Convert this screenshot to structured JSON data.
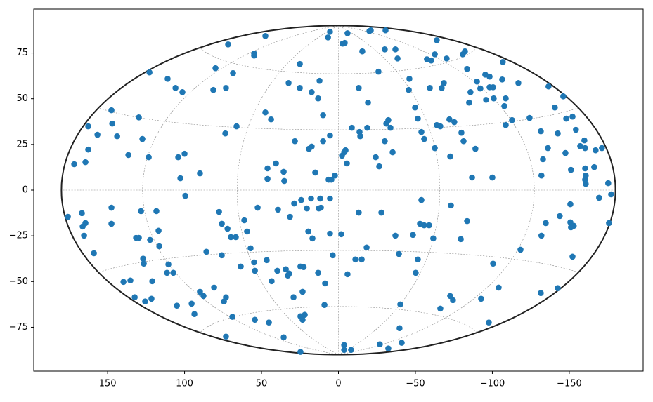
{
  "chart_data": {
    "type": "scatter",
    "projection": "hammer",
    "grid": true,
    "color": "#1f77b4",
    "xlim": [
      198,
      -198
    ],
    "ylim": [
      -99,
      99
    ],
    "xticks": [
      150,
      100,
      50,
      0,
      {
        "value": -50,
        "label": "−50"
      },
      {
        "value": -100,
        "label": "−100"
      },
      {
        "value": -150,
        "label": "−150"
      }
    ],
    "yticks": [
      {
        "value": -75,
        "label": "−75"
      },
      {
        "value": -50,
        "label": "−50"
      },
      {
        "value": -25,
        "label": "−25"
      },
      0,
      25,
      50,
      75
    ],
    "x": [
      5.5,
      6.8,
      -2.7,
      -4.1,
      -5.9,
      -21,
      -20.1,
      -30.6,
      71.7,
      47.5,
      54.8,
      54.8,
      25.1,
      -15.5,
      -30.1,
      -37,
      -38.4,
      -26,
      -63.9,
      -57.5,
      -60.3,
      -62.6,
      -70.3,
      -80.8,
      -82.2,
      79.9,
      68.5,
      122.8,
      111,
      105.9,
      101.4,
      81.3,
      73.1,
      32.4,
      25.1,
      17.4,
      12.3,
      13.2,
      -13.2,
      -19.2,
      -46.1,
      -45.7,
      -59.4,
      -67.1,
      -68.5,
      -83.6,
      -90,
      -92.2,
      -85.8,
      -84.9,
      -95.4,
      -98.2,
      -98.2,
      -100.5,
      -95.9,
      -100.9,
      -106.8,
      -106.4,
      -108.7,
      -107.8,
      -116.9,
      -112.8,
      -108.7,
      -136.5,
      -140.6,
      -146.1,
      -148,
      -152.1,
      -124.2,
      147.5,
      147,
      162.6,
      156.6,
      143.8,
      129.7,
      127.4,
      136.5,
      123.3,
      162.6,
      164.4,
      171.7,
      104.1,
      100,
      102.7,
      90,
      99.5,
      66.2,
      73.5,
      47.5,
      43.8,
      28.3,
      19.2,
      17.4,
      10,
      5.5,
      10,
      46.1,
      40.6,
      46.1,
      35.6,
      35.2,
      15.1,
      6.4,
      4.6,
      2.3,
      -2.3,
      -3.7,
      -4.6,
      -5.5,
      -8.7,
      -13.7,
      -14.2,
      -18.7,
      -24.2,
      -26.5,
      -31.1,
      -32.4,
      -33.8,
      -30.1,
      -35.2,
      -49.8,
      -51.6,
      -53.9,
      -55.7,
      -62.6,
      -63.9,
      -66.2,
      -72.1,
      -75.3,
      -72.6,
      -79.9,
      -81.3,
      -89,
      -86.8,
      -100,
      -131.5,
      -136.1,
      -132.9,
      -131.9,
      -142.5,
      -147.5,
      -151.1,
      -154.3,
      -157.1,
      -159.8,
      -160.3,
      -160.3,
      -160.7,
      -160.3,
      -160.7,
      -166.2,
      -167.1,
      -171.2,
      -169.4,
      -175.3,
      -177.2,
      -175.8,
      175.8,
      166.7,
      166.2,
      164.4,
      165.3,
      158.9,
      147.5,
      147.5,
      139.7,
      135.2,
      132.4,
      131.5,
      129.7,
      128.3,
      126.9,
      126.5,
      125.6,
      121.5,
      121,
      122.4,
      118.3,
      116.9,
      116.4,
      110.5,
      111.4,
      107.3,
      105,
      95.4,
      93.6,
      90,
      87.7,
      85.8,
      80.8,
      77.6,
      75.8,
      73.1,
      74.4,
      72.1,
      69.9,
      75.8,
      73.1,
      68.9,
      66.7,
      63.5,
      61.2,
      59.4,
      57.1,
      54.8,
      54.3,
      54.3,
      52.5,
      46.6,
      45.2,
      43.4,
      39.7,
      39.3,
      34.2,
      32.9,
      32,
      31.5,
      35.6,
      29.2,
      28.8,
      24.7,
      22.6,
      23.3,
      24.7,
      23.3,
      21.9,
      24.2,
      24.7,
      20.5,
      19.6,
      16.9,
      17.8,
      12.8,
      11.4,
      11.9,
      13.2,
      8.7,
      9.1,
      5.5,
      5.5,
      3.7,
      -1.8,
      -3.7,
      -3.7,
      -5.9,
      -8.2,
      -11,
      -13.2,
      -15.1,
      -18.3,
      -26.9,
      -27.9,
      -32.4,
      -37,
      -39.3,
      -40.2,
      -39.7,
      -41.1,
      -48.4,
      -51.6,
      -50.2,
      -53,
      -53.9,
      -55.7,
      -58.9,
      -61.6,
      -66.2,
      -72.6,
      -74.4,
      -73.1,
      -79.5,
      -83.6,
      -92.7,
      -97.7,
      -100.5,
      -104.1,
      -118.3,
      -131.9,
      -131.5,
      -134.7,
      -142.5,
      -143.8,
      -150.7,
      -150.7,
      -151.1,
      -152.9,
      -152.1
    ],
    "values": [
      86.6,
      83.5,
      80.1,
      80.5,
      85.8,
      87.4,
      87,
      87.4,
      79.7,
      84.3,
      74.7,
      73.6,
      69,
      75.9,
      77,
      77,
      72,
      64.8,
      82,
      71.6,
      70.9,
      74.3,
      72,
      74.3,
      75.9,
      66.7,
      64,
      64.4,
      60.9,
      55.9,
      53.6,
      54.8,
      55.9,
      58.6,
      55.9,
      53.6,
      59.8,
      50.2,
      55.9,
      47.9,
      60.9,
      54.8,
      55.9,
      55.9,
      58.6,
      66.3,
      59.4,
      55.6,
      53.6,
      47.9,
      63.2,
      62.1,
      56.3,
      56.3,
      49.4,
      50.2,
      70.1,
      60.5,
      50.2,
      46,
      58.6,
      38.3,
      35.6,
      56.7,
      45.2,
      51.3,
      39.1,
      40.2,
      39.5,
      43.7,
      36.4,
      34.9,
      30.3,
      29.5,
      39.8,
      28,
      19.2,
      18,
      22.2,
      15.3,
      14.2,
      18,
      19.9,
      6.5,
      9.2,
      -3.1,
      34.9,
      31,
      42.5,
      38.7,
      26.8,
      22.6,
      23.8,
      26.8,
      29.9,
      41,
      11.9,
      14.6,
      6.1,
      10,
      5,
      9.6,
      5.7,
      5.7,
      8,
      18.8,
      20.7,
      21.8,
      14.6,
      34.1,
      31.8,
      29.5,
      34.1,
      18,
      13,
      36.4,
      38.3,
      34.1,
      26.8,
      20.7,
      45.2,
      39.1,
      31.8,
      28,
      23,
      35.6,
      34.9,
      38.7,
      37.2,
      18.4,
      31.4,
      26.8,
      22.6,
      6.9,
      6.9,
      32.2,
      23,
      16.9,
      8,
      31,
      20.3,
      11.1,
      33,
      24.1,
      27.2,
      23,
      11.9,
      8,
      5.7,
      3.4,
      12.6,
      21.8,
      23,
      -4.2,
      3.8,
      -2.3,
      -18,
      -14.6,
      -12.6,
      -19.9,
      -18,
      -24.9,
      -34.5,
      -9.6,
      -18.4,
      -50.2,
      -49.4,
      -58.6,
      -26.1,
      -26.1,
      -11.5,
      -37.5,
      -40.2,
      -60.9,
      -59.4,
      -49.8,
      -27.2,
      -11.5,
      -22.2,
      -30.7,
      -40.6,
      -45.2,
      -45.2,
      -63.2,
      -62.1,
      -67.8,
      -55.6,
      -57.9,
      -33.7,
      -53.3,
      -11.9,
      -18.4,
      -58.6,
      -60.9,
      -21.1,
      -25.7,
      -35.6,
      -80.1,
      -69.3,
      -25.7,
      -41.8,
      -16.5,
      -22.6,
      -31.8,
      -39.5,
      -44.1,
      -70.9,
      -9.6,
      -38.3,
      -72.4,
      -49.8,
      -44.1,
      -10.7,
      -43.3,
      -46.7,
      -45.6,
      -14.6,
      -80.5,
      -58.6,
      -7.3,
      -41.8,
      -42.1,
      -55.6,
      -69,
      -70.9,
      -68.2,
      -5.4,
      -88.5,
      -10,
      -22.6,
      -26.4,
      -4.6,
      -10,
      -9.6,
      -4.6,
      -45.2,
      -51,
      -62.8,
      -4.6,
      -23.8,
      -35.6,
      -24.1,
      -84.7,
      -87.4,
      -46,
      -87.4,
      -37.9,
      -12.3,
      -37.9,
      -31.4,
      -84.3,
      -12.3,
      -86.6,
      -24.9,
      -34.9,
      -62.5,
      -75.5,
      -83.5,
      -24.5,
      -37.9,
      -45.2,
      -18.4,
      -5.4,
      -19.2,
      -19.2,
      -26.4,
      -64.8,
      -57.9,
      -60.2,
      -8.4,
      -26.8,
      -16.9,
      -59.4,
      -72.4,
      -40.2,
      -53.3,
      -32.6,
      -24.9,
      -56.3,
      -18,
      -53.6,
      -14.2,
      -7.7,
      -17.6,
      -20.3,
      -19.5,
      -36.4
    ]
  }
}
